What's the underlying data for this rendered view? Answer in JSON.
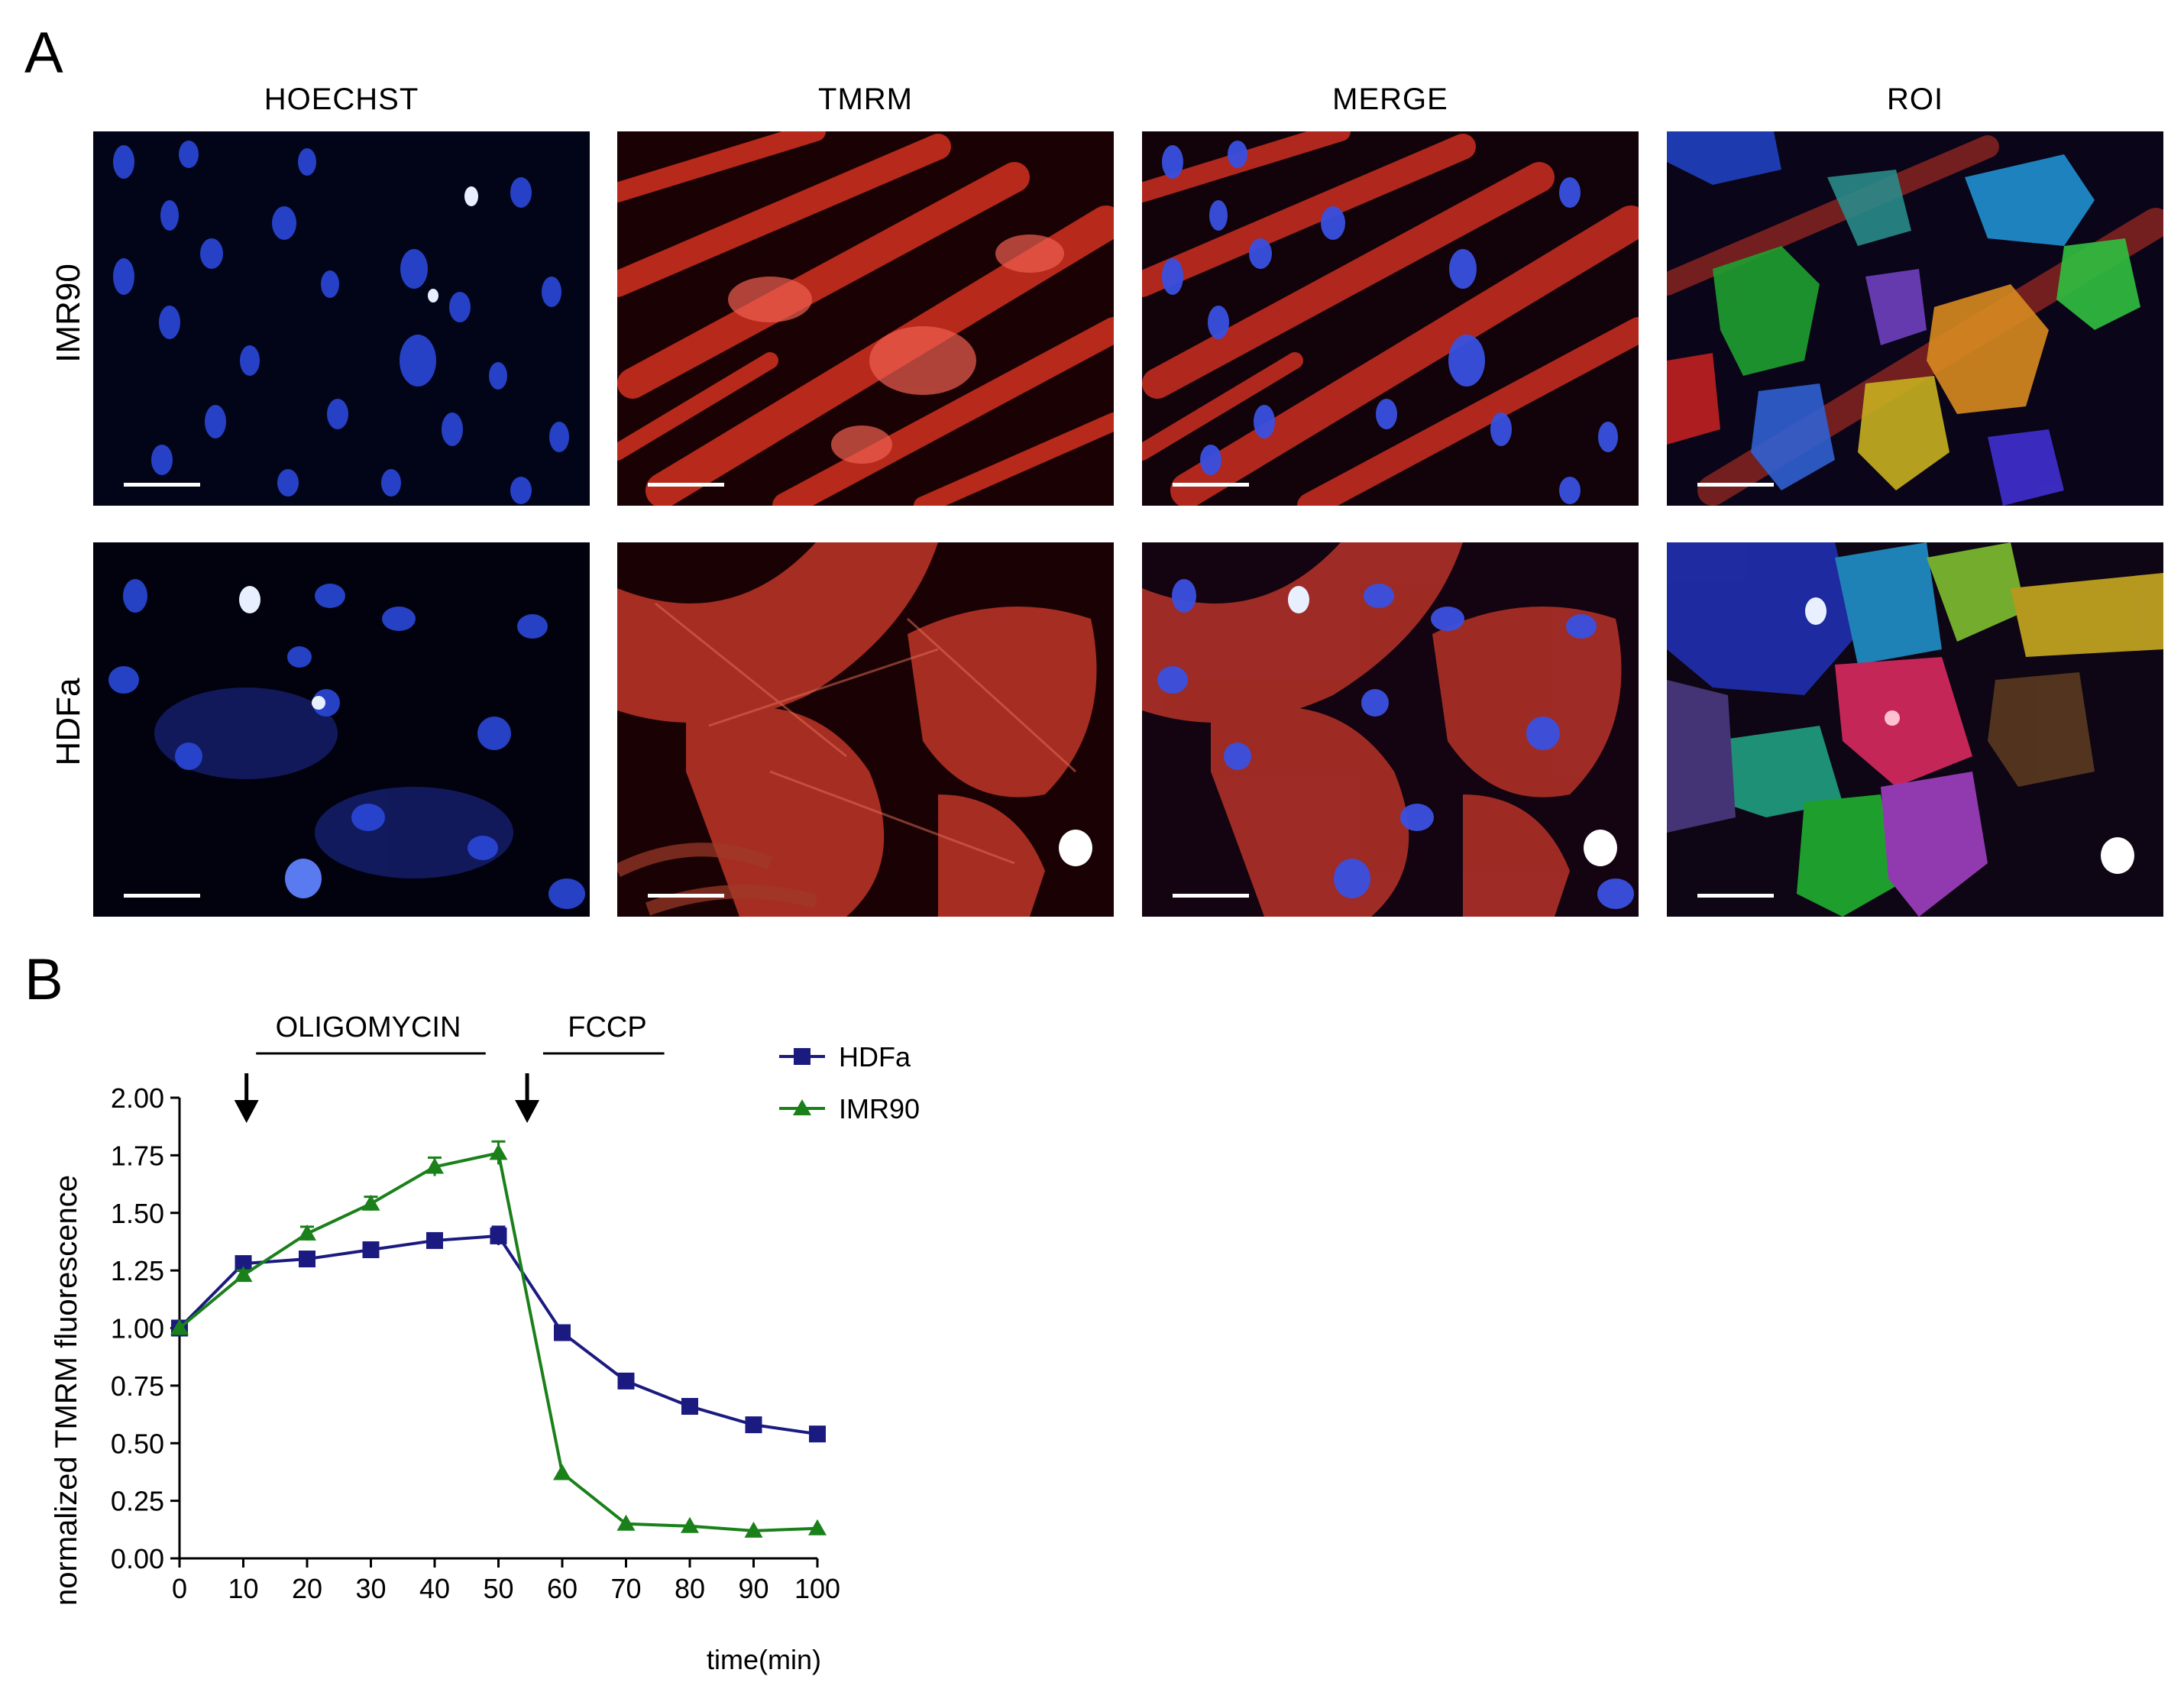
{
  "panel_a": {
    "letter": "A",
    "columns": [
      "HOECHST",
      "TMRM",
      "MERGE",
      "ROI"
    ],
    "rows": [
      "IMR90",
      "HDFa"
    ]
  },
  "panel_b": {
    "letter": "B",
    "annotations": {
      "oligomycin": "OLIGOMYCIN",
      "fccp": "FCCP"
    }
  },
  "chart_data": {
    "type": "line",
    "title": "",
    "xlabel": "time(min)",
    "ylabel": "normalized TMRM fluorescence",
    "xlim": [
      0,
      100
    ],
    "ylim": [
      0,
      2
    ],
    "x_ticks": [
      0,
      10,
      20,
      30,
      40,
      50,
      60,
      70,
      80,
      90,
      100
    ],
    "y_ticks": [
      0.0,
      0.25,
      0.5,
      0.75,
      1.0,
      1.25,
      1.5,
      1.75,
      2.0
    ],
    "y_tick_labels": [
      "0.00",
      "0.25",
      "0.50",
      "0.75",
      "1.00",
      "1.25",
      "1.50",
      "1.75",
      "2.00"
    ],
    "x": [
      0,
      10,
      20,
      30,
      40,
      50,
      60,
      70,
      80,
      90,
      100
    ],
    "legend_position": "top-right",
    "series": [
      {
        "name": "HDFa",
        "color": "#1a1a80",
        "marker": "square",
        "values": [
          1.0,
          1.28,
          1.3,
          1.34,
          1.38,
          1.4,
          0.98,
          0.77,
          0.66,
          0.58,
          0.54
        ],
        "errors": [
          0.01,
          0.02,
          0.02,
          0.03,
          0.03,
          0.04,
          0.02,
          0.02,
          0.01,
          0.01,
          0.01
        ]
      },
      {
        "name": "IMR90",
        "color": "#1a801a",
        "marker": "triangle",
        "values": [
          1.0,
          1.23,
          1.41,
          1.54,
          1.7,
          1.76,
          0.37,
          0.15,
          0.14,
          0.12,
          0.13
        ],
        "errors": [
          0.01,
          0.02,
          0.03,
          0.03,
          0.04,
          0.05,
          0.01,
          0.01,
          0.01,
          0.01,
          0.01
        ]
      }
    ],
    "arrows_at_x": [
      10.5,
      54.5
    ],
    "treatment_bars": [
      {
        "label": "OLIGOMYCIN",
        "x_start": 12,
        "x_end": 48
      },
      {
        "label": "FCCP",
        "x_start": 57,
        "x_end": 76
      }
    ]
  }
}
